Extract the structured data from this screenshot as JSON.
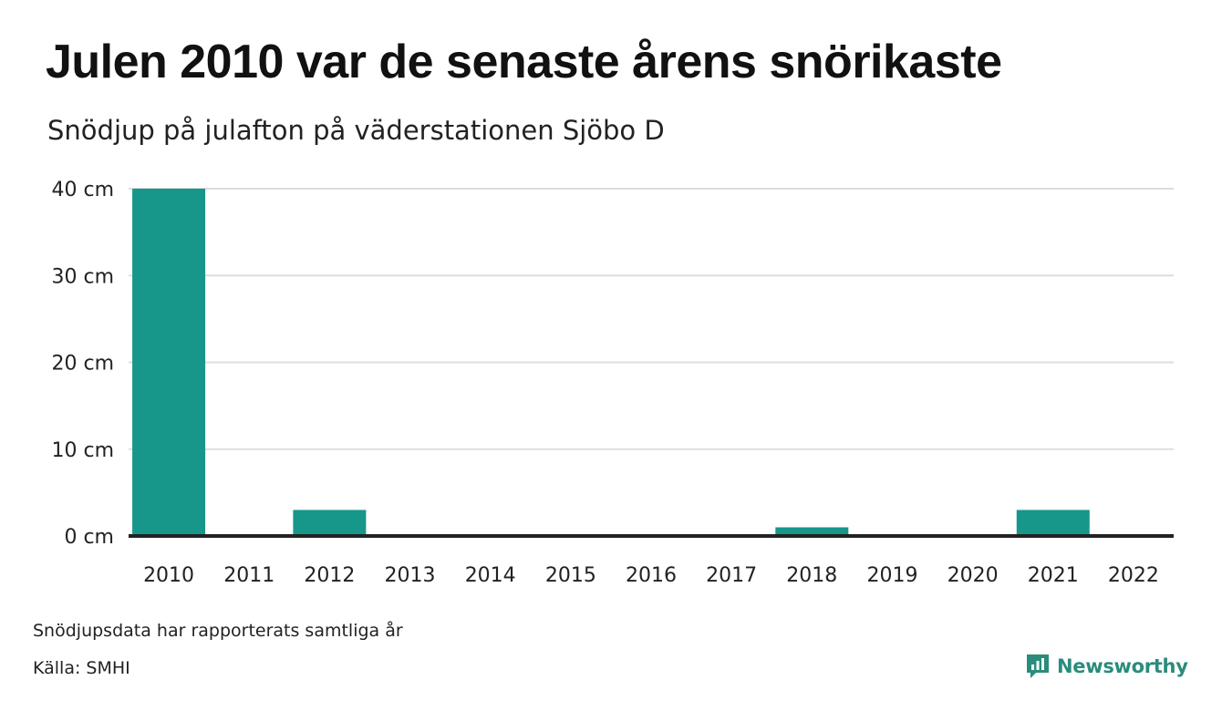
{
  "title": "Julen 2010 var de senaste årens snörikaste",
  "subtitle": "Snödjup på julafton på väderstationen Sjöbo D",
  "footer": {
    "note": "Snödjupsdata har rapporterats samtliga år",
    "source": "Källa: SMHI",
    "brand": "Newsworthy",
    "brand_color": "#2a8c7c"
  },
  "chart_data": {
    "type": "bar",
    "categories": [
      "2010",
      "2011",
      "2012",
      "2013",
      "2014",
      "2015",
      "2016",
      "2017",
      "2018",
      "2019",
      "2020",
      "2021",
      "2022"
    ],
    "values": [
      40,
      0,
      3,
      0,
      0,
      0,
      0,
      0,
      1,
      0,
      0,
      3,
      0
    ],
    "yticks": [
      0,
      10,
      20,
      30,
      40
    ],
    "ytick_labels": [
      "0 cm",
      "10 cm",
      "20 cm",
      "30 cm",
      "40 cm"
    ],
    "ylim": [
      0,
      40
    ],
    "grid": true,
    "bar_color": "#16978a"
  }
}
